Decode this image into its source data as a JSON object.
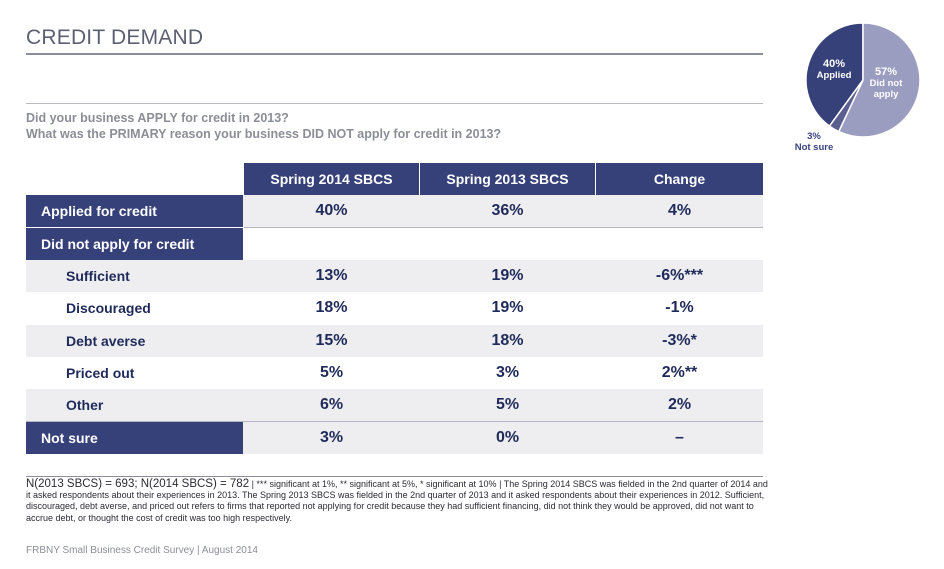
{
  "title": "CREDIT DEMAND",
  "questions": [
    "Did your business APPLY for credit in 2013?",
    "What was the PRIMARY reason your business DID NOT apply for credit in 2013?"
  ],
  "pie": {
    "applied": {
      "pct": "40%",
      "label": "Applied"
    },
    "not_applied": {
      "pct": "57%",
      "label1": "Did not",
      "label2": "apply"
    },
    "not_sure": {
      "pct": "3%",
      "label": "Not sure"
    }
  },
  "table": {
    "headers": [
      "Spring 2014 SBCS",
      "Spring 2013 SBCS",
      "Change"
    ],
    "rows": [
      {
        "label": "Applied for credit",
        "v2014": "40%",
        "v2013": "36%",
        "change": "4%"
      },
      {
        "label": "Did not apply for credit",
        "v2014": "",
        "v2013": "",
        "change": ""
      },
      {
        "label": "Sufficient",
        "v2014": "13%",
        "v2013": "19%",
        "change": "-6%***"
      },
      {
        "label": "Discouraged",
        "v2014": "18%",
        "v2013": "19%",
        "change": "-1%"
      },
      {
        "label": "Debt averse",
        "v2014": "15%",
        "v2013": "18%",
        "change": "-3%*"
      },
      {
        "label": "Priced out",
        "v2014": "5%",
        "v2013": "3%",
        "change": "2%**"
      },
      {
        "label": "Other",
        "v2014": "6%",
        "v2013": "5%",
        "change": "2%"
      },
      {
        "label": "Not sure",
        "v2014": "3%",
        "v2013": "0%",
        "change": "–"
      }
    ]
  },
  "chart_data": {
    "type": "pie",
    "categories": [
      "Applied",
      "Did not apply",
      "Not sure"
    ],
    "values": [
      40,
      57,
      3
    ],
    "colors": [
      "#364079",
      "#9b9dc0",
      "#5a5f8f"
    ]
  },
  "note": {
    "n": "N(2013 SBCS) = 693; N(2014 SBCS) = 782",
    "sig": " | *** significant at 1%, ** significant at 5%, * significant at 10% | The Spring 2014 SBCS was fielded in the 2nd quarter of 2014 and it asked respondents about their experiences in 2013. The Spring 2013 SBCS was fielded in the 2nd quarter of 2013 and it asked respondents about their experiences in 2012. Sufficient, discouraged, debt averse, and priced out refers to firms that reported not applying for credit because they had sufficient financing, did not think they would be approved, did not want to accrue debt, or thought the cost of credit was too high respectively."
  },
  "footer": "FRBNY Small Business Credit Survey | August 2014"
}
